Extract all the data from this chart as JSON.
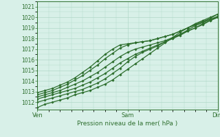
{
  "title": "",
  "xlabel": "Pression niveau de la mer( hPa )",
  "ylabel": "",
  "bg_color": "#d8f0e8",
  "plot_bg_color": "#d8f0e8",
  "grid_color": "#b0d8c8",
  "line_color": "#2d6e2d",
  "ylim": [
    1011.3,
    1021.5
  ],
  "xlim": [
    0,
    48
  ],
  "yticks": [
    1012,
    1013,
    1014,
    1015,
    1016,
    1017,
    1018,
    1019,
    1020,
    1021
  ],
  "xtick_positions": [
    0,
    24,
    48
  ],
  "xtick_labels": [
    "Ven",
    "Sam",
    "Dim"
  ],
  "lines": [
    [
      0,
      1011.5,
      2,
      1011.8,
      4,
      1012.0,
      6,
      1012.2,
      8,
      1012.4,
      10,
      1012.7,
      12,
      1012.9,
      14,
      1013.1,
      16,
      1013.4,
      18,
      1013.7,
      20,
      1014.1,
      22,
      1014.6,
      24,
      1015.1,
      26,
      1015.6,
      28,
      1016.1,
      30,
      1016.6,
      32,
      1017.1,
      34,
      1017.6,
      36,
      1018.1,
      38,
      1018.6,
      40,
      1019.0,
      42,
      1019.4,
      44,
      1019.7,
      46,
      1020.0,
      48,
      1020.3
    ],
    [
      0,
      1012.0,
      2,
      1012.2,
      4,
      1012.4,
      6,
      1012.6,
      8,
      1012.8,
      10,
      1013.0,
      12,
      1013.2,
      14,
      1013.5,
      16,
      1013.8,
      18,
      1014.2,
      20,
      1014.7,
      22,
      1015.2,
      24,
      1015.8,
      26,
      1016.3,
      28,
      1016.7,
      30,
      1017.0,
      32,
      1017.3,
      34,
      1017.7,
      36,
      1018.0,
      38,
      1018.4,
      40,
      1018.8,
      42,
      1019.2,
      44,
      1019.5,
      46,
      1019.8,
      48,
      1020.1
    ],
    [
      0,
      1012.3,
      2,
      1012.5,
      4,
      1012.7,
      6,
      1012.9,
      8,
      1013.1,
      10,
      1013.3,
      12,
      1013.6,
      14,
      1013.9,
      16,
      1014.3,
      18,
      1014.7,
      20,
      1015.2,
      22,
      1015.7,
      24,
      1016.1,
      26,
      1016.5,
      28,
      1016.8,
      30,
      1017.1,
      32,
      1017.4,
      34,
      1017.7,
      36,
      1018.0,
      38,
      1018.3,
      40,
      1018.7,
      42,
      1019.0,
      44,
      1019.4,
      46,
      1019.7,
      48,
      1020.0
    ],
    [
      0,
      1012.5,
      2,
      1012.7,
      4,
      1012.9,
      6,
      1013.1,
      8,
      1013.4,
      10,
      1013.7,
      12,
      1014.0,
      14,
      1014.4,
      16,
      1014.8,
      18,
      1015.3,
      20,
      1015.8,
      22,
      1016.3,
      24,
      1016.7,
      26,
      1017.0,
      28,
      1017.2,
      30,
      1017.4,
      32,
      1017.6,
      34,
      1017.8,
      36,
      1018.1,
      38,
      1018.4,
      40,
      1018.7,
      42,
      1019.0,
      44,
      1019.3,
      46,
      1019.7,
      48,
      1020.0
    ],
    [
      0,
      1012.7,
      2,
      1012.9,
      4,
      1013.1,
      6,
      1013.4,
      8,
      1013.7,
      10,
      1014.1,
      12,
      1014.5,
      14,
      1015.0,
      16,
      1015.5,
      18,
      1016.1,
      20,
      1016.6,
      22,
      1017.1,
      24,
      1017.4,
      26,
      1017.6,
      28,
      1017.7,
      30,
      1017.8,
      32,
      1018.0,
      34,
      1018.2,
      36,
      1018.4,
      38,
      1018.7,
      40,
      1019.0,
      42,
      1019.3,
      44,
      1019.6,
      46,
      1019.8,
      48,
      1020.0
    ],
    [
      0,
      1012.9,
      2,
      1013.1,
      4,
      1013.3,
      6,
      1013.6,
      8,
      1013.9,
      10,
      1014.3,
      12,
      1014.8,
      14,
      1015.3,
      16,
      1015.9,
      18,
      1016.5,
      20,
      1017.0,
      22,
      1017.4,
      24,
      1017.5,
      26,
      1017.6,
      28,
      1017.7,
      30,
      1017.8,
      32,
      1018.0,
      34,
      1018.2,
      36,
      1018.4,
      38,
      1018.7,
      40,
      1019.0,
      42,
      1019.3,
      44,
      1019.6,
      46,
      1019.9,
      48,
      1020.3
    ]
  ]
}
